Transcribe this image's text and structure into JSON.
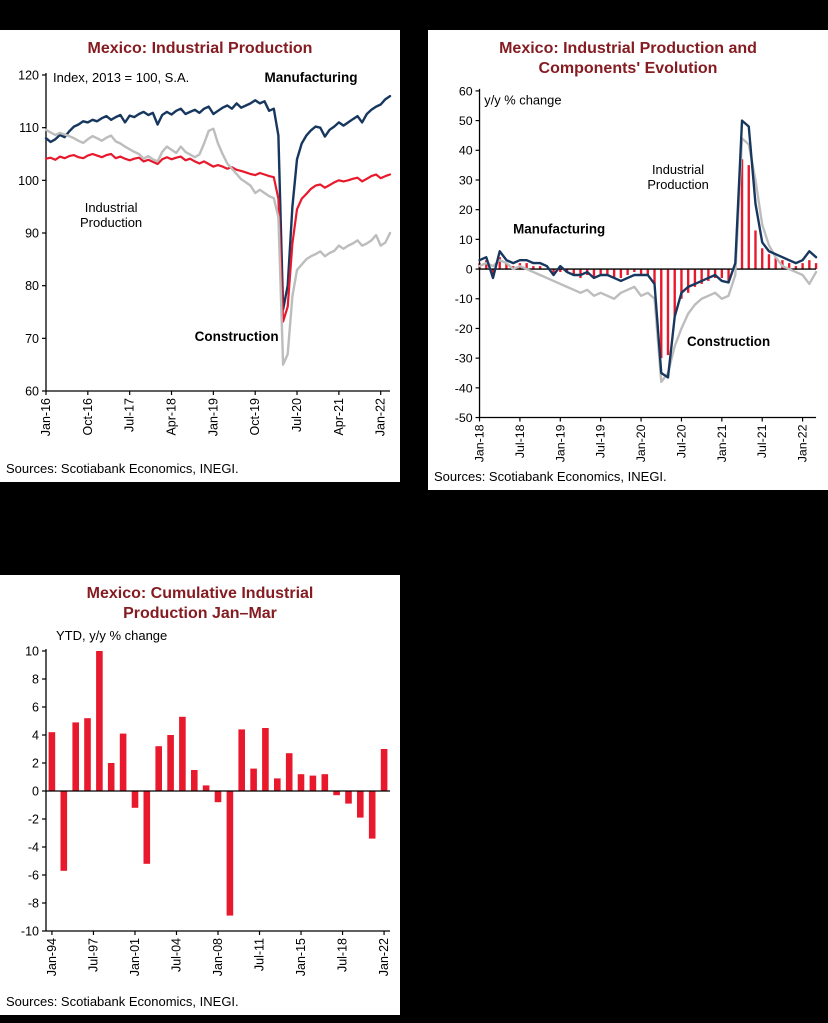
{
  "colors": {
    "background": "#000000",
    "panel": "#FFFFFF",
    "title": "#851C22",
    "axis": "#000000",
    "navy": "#17375E",
    "red": "#E8192C",
    "gray": "#BDBDBD"
  },
  "chart_data": [
    {
      "type": "line",
      "title": "Mexico: Industrial Production",
      "unit_note": "Index, 2013 = 100, S.A.",
      "source": "Sources: Scotiabank Economics, INEGI.",
      "x": {
        "start": "Jan-16",
        "end": "Mar-22",
        "tick_labels": [
          "Jan-16",
          "Oct-16",
          "Jul-17",
          "Apr-18",
          "Jan-19",
          "Oct-19",
          "Jul-20",
          "Apr-21",
          "Jan-22"
        ],
        "tick_positions": [
          0,
          9,
          18,
          27,
          36,
          45,
          54,
          63,
          72
        ]
      },
      "y": {
        "min": 60,
        "max": 120,
        "step": 10
      },
      "series": [
        {
          "name": "Manufacturing",
          "color": "#17375E",
          "width": 2.4,
          "values": [
            108,
            107.3,
            107.8,
            108.6,
            108.2,
            109.3,
            110.2,
            110.6,
            111.2,
            111,
            111.5,
            111.2,
            111.8,
            112.2,
            111.5,
            112,
            112.4,
            111,
            112.3,
            112,
            112.6,
            113,
            112.4,
            112.8,
            110.6,
            112.4,
            113,
            112.5,
            113.2,
            113.6,
            112.6,
            113,
            113.4,
            112.8,
            113.6,
            114,
            112.6,
            113.2,
            113.8,
            114.2,
            113.6,
            114.6,
            113.8,
            114.2,
            114.6,
            115.2,
            114.6,
            115,
            113.2,
            113.6,
            108.5,
            75.5,
            80,
            95,
            104,
            107,
            108.5,
            109.5,
            110.2,
            110,
            108.3,
            109.6,
            110.2,
            111,
            110.4,
            111,
            111.6,
            112.2,
            111,
            112.6,
            113.4,
            114,
            114.4,
            115.4,
            116
          ]
        },
        {
          "name": "Industrial Production",
          "color": "#E8192C",
          "width": 2.2,
          "values": [
            104.1,
            104.3,
            103.9,
            104.5,
            104.2,
            104.6,
            104.8,
            104.4,
            104.2,
            104.7,
            105,
            104.7,
            104.4,
            104.8,
            105,
            104.2,
            104.5,
            104.1,
            103.8,
            104.1,
            104.3,
            103.6,
            103.9,
            103.5,
            103.1,
            104,
            104.4,
            104,
            104.3,
            104.5,
            103.8,
            104.1,
            103.6,
            103.2,
            103.6,
            103.1,
            102.6,
            102.9,
            102.6,
            102.2,
            102.5,
            102,
            101.8,
            101.5,
            101.2,
            101,
            101.4,
            101.1,
            100.8,
            100.6,
            96.5,
            73.2,
            76,
            88,
            94.5,
            96.5,
            97.4,
            98.4,
            99,
            99.2,
            98.6,
            99.1,
            99.6,
            100,
            99.8,
            100,
            100.3,
            100.5,
            99.8,
            100.3,
            100.8,
            101.1,
            100.4,
            100.8,
            101.1
          ]
        },
        {
          "name": "Construction",
          "color": "#BDBDBD",
          "width": 2.4,
          "values": [
            109.6,
            109.1,
            108.6,
            109,
            108.7,
            108.4,
            108,
            107.5,
            107.1,
            107.8,
            108.4,
            108,
            107.5,
            108.1,
            108.5,
            107.4,
            107,
            106.4,
            105.9,
            105.4,
            105,
            104.1,
            104.6,
            104,
            103.6,
            105.4,
            106.4,
            105.8,
            105.2,
            106.4,
            105.4,
            104.9,
            104.4,
            104.9,
            107,
            109.4,
            109.8,
            107,
            105,
            103.2,
            102.2,
            101.2,
            100.2,
            99.6,
            99,
            97.6,
            98.2,
            97.6,
            97,
            96.6,
            93,
            65,
            67,
            78,
            83,
            84,
            85,
            85.6,
            86,
            86.5,
            85.6,
            86.2,
            86.6,
            87.6,
            87,
            87.6,
            88,
            88.6,
            87.6,
            88,
            88.6,
            89.6,
            87.6,
            88.2,
            90
          ]
        }
      ],
      "annotations": [
        {
          "lines": [
            "Index, 2013 = 100, S.A."
          ],
          "x": 1.5,
          "y": 118.7,
          "anchor": "start",
          "color": "#000000",
          "bold": false,
          "size": 13
        },
        {
          "lines": [
            "Manufacturing"
          ],
          "x": 47,
          "y": 118.7,
          "anchor": "start",
          "color": "#17375E",
          "bold": true,
          "size": 13.5
        },
        {
          "lines": [
            "Industrial",
            "Production"
          ],
          "x": 14,
          "y": 94,
          "anchor": "middle",
          "color": "#E8192C",
          "bold": false,
          "size": 13
        },
        {
          "lines": [
            "Construction"
          ],
          "x": 41,
          "y": 69.5,
          "anchor": "middle",
          "color": "#BDBDBD",
          "bold": true,
          "size": 13.5
        }
      ]
    },
    {
      "type": "line+bar",
      "title": "Mexico: Industrial Production and Components' Evolution",
      "unit_note": "y/y % change",
      "source": "Sources: Scotiabank Economics, INEGI.",
      "x": {
        "start": "Jan-18",
        "end": "Mar-22",
        "tick_labels": [
          "Jan-18",
          "Jul-18",
          "Jan-19",
          "Jul-19",
          "Jan-20",
          "Jul-20",
          "Jan-21",
          "Jul-21",
          "Jan-22"
        ],
        "tick_positions": [
          0,
          6,
          12,
          18,
          24,
          30,
          36,
          42,
          48
        ]
      },
      "y": {
        "min": -50,
        "max": 60,
        "step": 10
      },
      "hatch_bars": {
        "name": "Industrial Production",
        "color": "#E8192C",
        "values": [
          2,
          3,
          -2,
          4,
          2,
          1,
          2,
          2,
          1,
          1,
          0,
          -2,
          -1,
          -1,
          -2,
          -3,
          -2,
          -3,
          -2,
          -2,
          -3,
          -3,
          -2,
          -1,
          -2,
          -2,
          -5,
          -30,
          -29,
          -16,
          -10,
          -8,
          -6,
          -5,
          -4,
          -3,
          -3,
          -4,
          1,
          37,
          35,
          13,
          7,
          5,
          4,
          3,
          2,
          1,
          2,
          3,
          2
        ]
      },
      "series": [
        {
          "name": "Construction",
          "color": "#BDBDBD",
          "width": 2.4,
          "values": [
            1,
            2,
            1,
            3,
            2,
            0,
            1,
            0,
            -1,
            -2,
            -3,
            -4,
            -5,
            -6,
            -7,
            -8,
            -7,
            -9,
            -8,
            -9,
            -10,
            -8,
            -7,
            -6,
            -9,
            -8,
            -10,
            -38,
            -35,
            -26,
            -20,
            -15,
            -12,
            -10,
            -9,
            -8,
            -10,
            -9,
            -2,
            44,
            42,
            30,
            15,
            8,
            4,
            1,
            0,
            -1,
            -2,
            -5,
            -1
          ]
        },
        {
          "name": "Manufacturing",
          "color": "#17375E",
          "width": 2.4,
          "values": [
            3,
            4,
            -3,
            6,
            3,
            2,
            3,
            3,
            2,
            2,
            1,
            -2,
            1,
            -1,
            -2,
            -2,
            -1,
            -3,
            -2,
            -2,
            -3,
            -4,
            -3,
            -2,
            -2,
            -2,
            -5,
            -35,
            -36.5,
            -16,
            -8,
            -6,
            -5,
            -4,
            -3,
            -2,
            -4,
            -4.5,
            2,
            50,
            48,
            22,
            9,
            6,
            5,
            4,
            3,
            2,
            3,
            6,
            4
          ]
        }
      ],
      "annotations": [
        {
          "lines": [
            "y/y % change"
          ],
          "x": 0.7,
          "y": 55.5,
          "anchor": "start",
          "color": "#000000",
          "bold": false,
          "size": 13
        },
        {
          "lines": [
            "Manufacturing"
          ],
          "x": 5,
          "y": 12,
          "anchor": "start",
          "color": "#17375E",
          "bold": true,
          "size": 13.5
        },
        {
          "lines": [
            "Industrial",
            "Production"
          ],
          "x": 29.5,
          "y": 32,
          "anchor": "middle",
          "color": "#E8192C",
          "bold": false,
          "size": 13
        },
        {
          "lines": [
            "Construction"
          ],
          "x": 37,
          "y": -26,
          "anchor": "middle",
          "color": "#BDBDBD",
          "bold": true,
          "size": 13.5
        }
      ]
    },
    {
      "type": "bar",
      "title": "Mexico: Cumulative Industrial Production Jan–Mar",
      "subtitle": "YTD, y/y % change",
      "source": "Sources: Scotiabank Economics, INEGI.",
      "bar_color": "#E8192C",
      "categories": [
        "1994",
        "1995",
        "1996",
        "1997",
        "1998",
        "1999",
        "2000",
        "2001",
        "2002",
        "2003",
        "2004",
        "2005",
        "2006",
        "2007",
        "2008",
        "2009",
        "2010",
        "2011",
        "2012",
        "2013",
        "2014",
        "2015",
        "2016",
        "2017",
        "2018",
        "2019",
        "2020",
        "2021",
        "2022"
      ],
      "values": [
        4.2,
        -5.7,
        4.9,
        5.2,
        10,
        2,
        4.1,
        -1.2,
        -5.2,
        3.2,
        4,
        5.3,
        1.5,
        0.4,
        -0.8,
        -8.9,
        4.4,
        1.6,
        4.5,
        0.9,
        2.7,
        1.2,
        1.1,
        1.2,
        -0.3,
        -0.9,
        -1.9,
        -3.4,
        3
      ],
      "x": {
        "tick_labels": [
          "Jan-94",
          "Jul-97",
          "Jan-01",
          "Jul-04",
          "Jan-08",
          "Jul-11",
          "Jan-15",
          "Jul-18",
          "Jan-22"
        ],
        "tick_positions": [
          0,
          3.5,
          7,
          10.5,
          14,
          17.5,
          21,
          24.5,
          28
        ]
      },
      "y": {
        "min": -10,
        "max": 10,
        "step": 2
      },
      "annotations": []
    }
  ]
}
